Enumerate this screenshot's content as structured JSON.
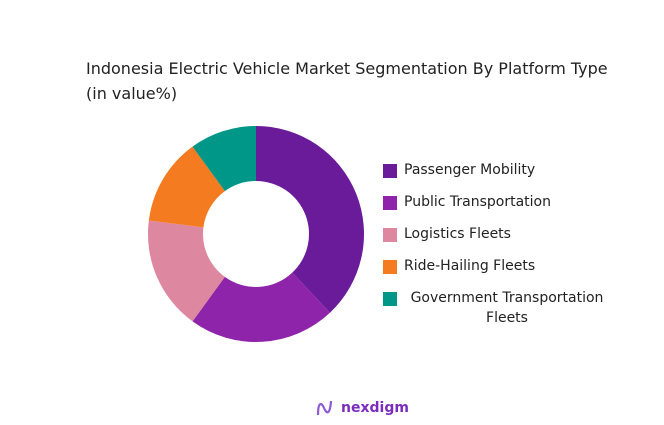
{
  "chart_data": {
    "type": "pie",
    "donut": true,
    "title": "Indonesia Electric Vehicle Market Segmentation By Platform Type (in value%)",
    "categories": [
      "Passenger Mobility",
      "Public Transportation",
      "Logistics Fleets",
      "Ride-Hailing Fleets",
      "Government Transportation Fleets"
    ],
    "values": [
      38,
      22,
      17,
      13,
      10
    ],
    "colors": [
      "#6a1b9a",
      "#8e24aa",
      "#de87a0",
      "#f47b20",
      "#009688"
    ],
    "legend_position": "right"
  },
  "brand": {
    "name": "nexdigm",
    "color": "#7b2cbf"
  }
}
